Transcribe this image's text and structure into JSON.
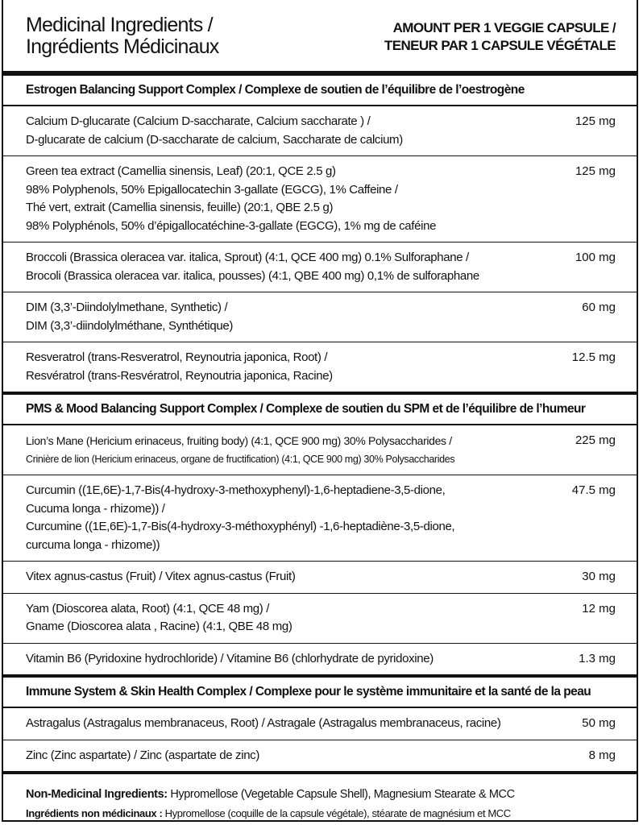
{
  "header": {
    "left": [
      "Medicinal Ingredients /",
      "Ingrédients Médicinaux"
    ],
    "right": [
      "AMOUNT PER 1 VEGGIE CAPSULE /",
      "TENEUR PAR 1 CAPSULE VÉGÉTALE"
    ]
  },
  "sections": [
    {
      "title": "Estrogen Balancing Support Complex / Complexe de soutien de l’équilibre de l’oestrogène",
      "rows": [
        {
          "lines": [
            "Calcium D-glucarate (Calcium D-saccharate, Calcium saccharate ) /",
            "D-glucarate de calcium (D-saccharate de calcium, Saccharate de calcium)"
          ],
          "amount": "125 mg"
        },
        {
          "lines": [
            "Green tea extract (Camellia sinensis, Leaf) (20:1, QCE 2.5 g)",
            "98% Polyphenols, 50% Epigallocatechin 3-gallate (EGCG), 1% Caffeine /",
            "Thé vert, extrait (Camellia sinensis, feuille) (20:1, QBE 2.5 g)",
            "98% Polyphénols, 50% d’épigallocatéchine-3-gallate (EGCG), 1% mg de caféine"
          ],
          "amount": "125 mg"
        },
        {
          "lines": [
            "Broccoli (Brassica oleracea var. italica, Sprout) (4:1, QCE 400 mg) 0.1% Sulforaphane /",
            "Brocoli (Brassica oleracea var. italica, pousses) (4:1, QBE 400 mg) 0,1% de sulforaphane"
          ],
          "amount": "100 mg"
        },
        {
          "lines": [
            "DIM (3,3’-Diindolylmethane, Synthetic) /",
            "DIM (3,3’-diindolylméthane, Synthétique)"
          ],
          "amount": "60 mg"
        },
        {
          "lines": [
            "Resveratrol (trans-Resveratrol, Reynoutria japonica, Root) /",
            "Resvératrol (trans-Resvératrol, Reynoutria japonica, Racine)"
          ],
          "amount": "12.5 mg"
        }
      ]
    },
    {
      "title": "PMS & Mood Balancing Support Complex / Complexe de soutien du SPM et de l’équilibre de l’humeur",
      "rows": [
        {
          "lines": [
            "Lion’s Mane (Hericium erinaceus, fruiting body) (4:1, QCE 900 mg) 30% Polysaccharides /",
            "Crinière de lion (Hericium erinaceus, organe de fructification) (4:1, QCE 900 mg) 30% Polysaccharides"
          ],
          "amount": "225 mg"
        },
        {
          "lines": [
            "Curcumin ((1E,6E)-1,7-Bis(4-hydroxy-3-methoxyphenyl)-1,6-heptadiene-3,5-dione,",
            "Cucuma longa - rhizome)) /",
            "Curcumine ((1E,6E)-1,7-Bis(4-hydroxy-3-méthoxyphényl) -1,6-heptadiène-3,5-dione,",
            "curcuma longa - rhizome))"
          ],
          "amount": "47.5 mg"
        },
        {
          "lines": [
            "Vitex agnus-castus (Fruit) / Vitex agnus-castus (Fruit)"
          ],
          "amount": "30 mg"
        },
        {
          "lines": [
            "Yam (Dioscorea alata, Root) (4:1, QCE 48 mg) /",
            "Gname (Dioscorea alata , Racine) (4:1, QBE 48 mg)"
          ],
          "amount": "12 mg"
        },
        {
          "lines": [
            "Vitamin B6 (Pyridoxine hydrochloride) / Vitamine B6 (chlorhydrate de pyridoxine)"
          ],
          "amount": "1.3 mg"
        }
      ]
    },
    {
      "title": "Immune System & Skin Health Complex / Complexe pour le système immunitaire et la santé de la peau",
      "rows": [
        {
          "lines": [
            "Astragalus (Astragalus membranaceus, Root) / Astragale (Astragalus membranaceus, racine)"
          ],
          "amount": "50 mg"
        },
        {
          "lines": [
            "Zinc (Zinc aspartate) / Zinc (aspartate de zinc)"
          ],
          "amount": "8 mg"
        }
      ]
    }
  ],
  "footer": [
    {
      "label": "Non-Medicinal Ingredients:",
      "text": "Hypromellose (Vegetable Capsule Shell), Magnesium Stearate & MCC"
    },
    {
      "label": "Ingrédients non médicinaux :",
      "text": "Hypromellose (coquille de la capsule végétale), stéarate de magnésium et MCC"
    }
  ]
}
